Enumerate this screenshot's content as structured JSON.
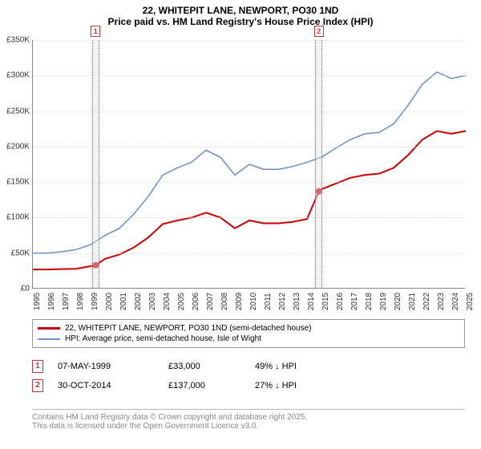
{
  "title": {
    "line1": "22, WHITEPIT LANE, NEWPORT, PO30 1ND",
    "line2": "Price paid vs. HM Land Registry's House Price Index (HPI)"
  },
  "chart": {
    "type": "line",
    "x_start": 1995,
    "x_end": 2025,
    "ylim": [
      0,
      350000
    ],
    "yticks": [
      0,
      50000,
      100000,
      150000,
      200000,
      250000,
      300000,
      350000
    ],
    "ytick_labels": [
      "£0",
      "£50K",
      "£100K",
      "£150K",
      "£200K",
      "£250K",
      "£300K",
      "£350K"
    ],
    "xticks": [
      1995,
      1996,
      1997,
      1998,
      1999,
      2000,
      2001,
      2002,
      2003,
      2004,
      2005,
      2006,
      2007,
      2008,
      2009,
      2010,
      2011,
      2012,
      2013,
      2014,
      2015,
      2016,
      2017,
      2018,
      2019,
      2020,
      2021,
      2022,
      2023,
      2024,
      2025
    ],
    "xtick_labels": [
      "1995",
      "1996",
      "1997",
      "1998",
      "1999",
      "2000",
      "2001",
      "2002",
      "2003",
      "2004",
      "2005",
      "2006",
      "2007",
      "2008",
      "2009",
      "2010",
      "2011",
      "2012",
      "2013",
      "2014",
      "2015",
      "2016",
      "2017",
      "2018",
      "2019",
      "2020",
      "2021",
      "2022",
      "2023",
      "2024",
      "2025"
    ],
    "background_color": "#ffffff",
    "grid_color": "#dddddd",
    "red_series": {
      "color": "#cc0000",
      "width": 2,
      "points": [
        [
          1995,
          27000
        ],
        [
          1996,
          27000
        ],
        [
          1997,
          27500
        ],
        [
          1998,
          28000
        ],
        [
          1999.35,
          33000
        ],
        [
          2000,
          42000
        ],
        [
          2001,
          48000
        ],
        [
          2002,
          58000
        ],
        [
          2003,
          72000
        ],
        [
          2004,
          91000
        ],
        [
          2005,
          96000
        ],
        [
          2006,
          100000
        ],
        [
          2007,
          107000
        ],
        [
          2008,
          100000
        ],
        [
          2009,
          85000
        ],
        [
          2010,
          96000
        ],
        [
          2011,
          92000
        ],
        [
          2012,
          92000
        ],
        [
          2013,
          94000
        ],
        [
          2014,
          98000
        ],
        [
          2014.82,
          137000
        ],
        [
          2015,
          140000
        ],
        [
          2016,
          148000
        ],
        [
          2017,
          156000
        ],
        [
          2018,
          160000
        ],
        [
          2019,
          162000
        ],
        [
          2020,
          170000
        ],
        [
          2021,
          188000
        ],
        [
          2022,
          210000
        ],
        [
          2023,
          222000
        ],
        [
          2024,
          218000
        ],
        [
          2025,
          222000
        ]
      ]
    },
    "blue_series": {
      "color": "#6a8fc9",
      "width": 1.5,
      "points": [
        [
          1995,
          50000
        ],
        [
          1996,
          50000
        ],
        [
          1997,
          52000
        ],
        [
          1998,
          55000
        ],
        [
          1999,
          62000
        ],
        [
          2000,
          75000
        ],
        [
          2001,
          85000
        ],
        [
          2002,
          105000
        ],
        [
          2003,
          130000
        ],
        [
          2004,
          160000
        ],
        [
          2005,
          170000
        ],
        [
          2006,
          178000
        ],
        [
          2007,
          195000
        ],
        [
          2008,
          185000
        ],
        [
          2009,
          160000
        ],
        [
          2010,
          175000
        ],
        [
          2011,
          168000
        ],
        [
          2012,
          168000
        ],
        [
          2013,
          172000
        ],
        [
          2014,
          178000
        ],
        [
          2015,
          185000
        ],
        [
          2016,
          198000
        ],
        [
          2017,
          210000
        ],
        [
          2018,
          218000
        ],
        [
          2019,
          220000
        ],
        [
          2020,
          232000
        ],
        [
          2021,
          258000
        ],
        [
          2022,
          288000
        ],
        [
          2023,
          305000
        ],
        [
          2024,
          296000
        ],
        [
          2025,
          300000
        ]
      ]
    },
    "sale_markers": [
      {
        "idx": "1",
        "x": 1999.35,
        "y": 33000,
        "shade": [
          1999.1,
          1999.6
        ]
      },
      {
        "idx": "2",
        "x": 2014.82,
        "y": 137000,
        "shade": [
          2014.55,
          2015.05
        ]
      }
    ]
  },
  "legend": {
    "red_label": "22, WHITEPIT LANE, NEWPORT, PO30 1ND (semi-detached house)",
    "blue_label": "HPI: Average price, semi-detached house, Isle of Wight",
    "red_color": "#cc0000",
    "blue_color": "#6a8fc9"
  },
  "sales": [
    {
      "idx": "1",
      "date": "07-MAY-1999",
      "price": "£33,000",
      "pct": "49% ↓ HPI"
    },
    {
      "idx": "2",
      "date": "30-OCT-2014",
      "price": "£137,000",
      "pct": "27% ↓ HPI"
    }
  ],
  "footer": {
    "line1": "Contains HM Land Registry data © Crown copyright and database right 2025.",
    "line2": "This data is licensed under the Open Government Licence v3.0."
  }
}
